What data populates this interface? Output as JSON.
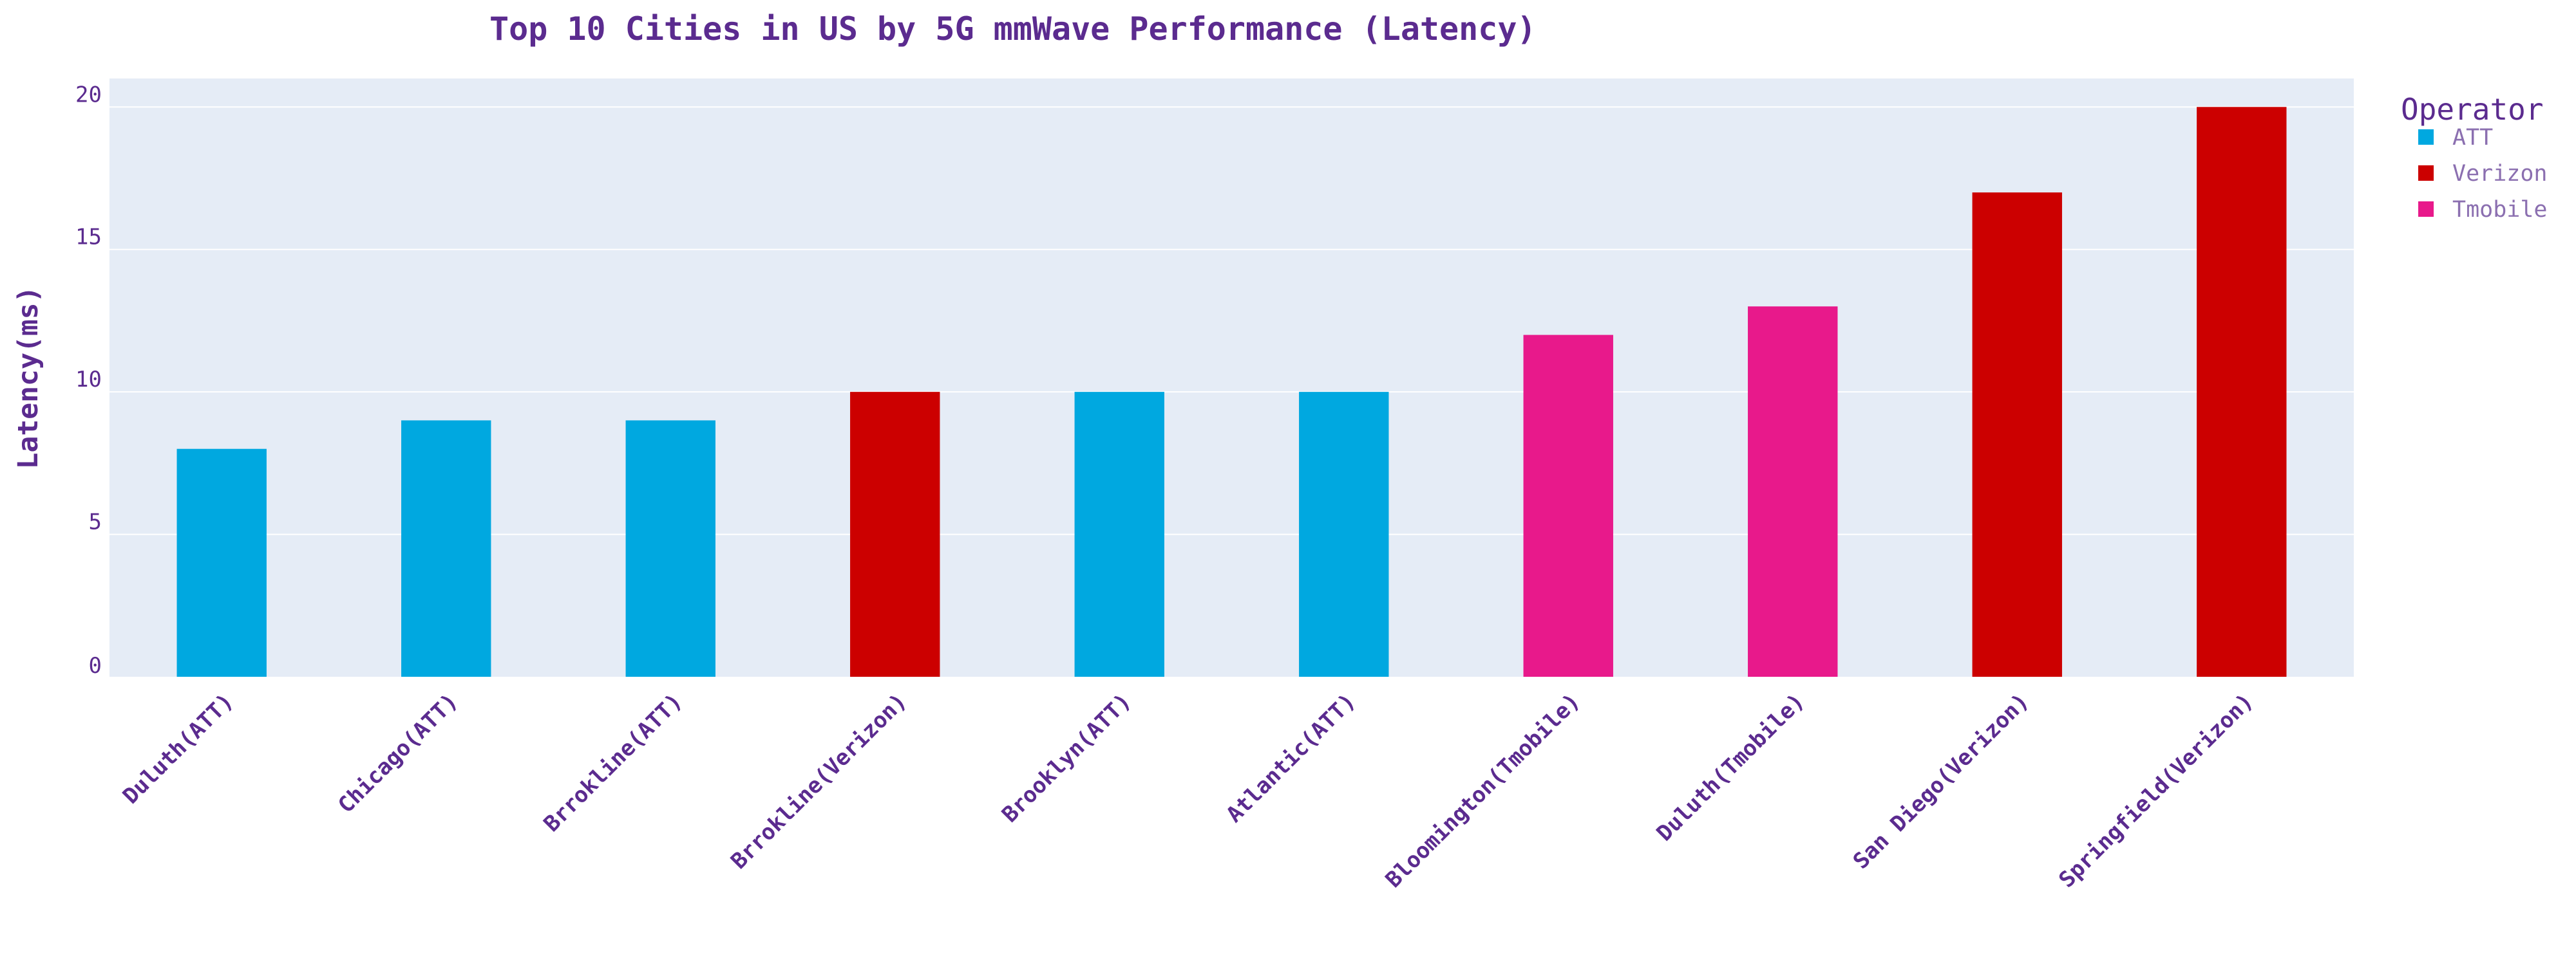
{
  "chart_data": {
    "type": "bar",
    "title": "Top 10 Cities in US by 5G mmWave Performance (Latency)",
    "xlabel": "",
    "ylabel": "Latency(ms)",
    "ylim": [
      0,
      21
    ],
    "yticks": [
      0,
      5,
      10,
      15,
      20
    ],
    "grid": true,
    "legend_position": "top-right",
    "legend_title": "Operator",
    "categories": [
      "Duluth(ATT)",
      "Chicago(ATT)",
      "Brrokline(ATT)",
      "Brrokline(Verizon)",
      "Brooklyn(ATT)",
      "Atlantic(ATT)",
      "Bloomington(Tmobile)",
      "Duluth(Tmobile)",
      "San Diego(Verizon)",
      "Springfield(Verizon)"
    ],
    "values": [
      8,
      9,
      9,
      10,
      10,
      10,
      12,
      13,
      17,
      20
    ],
    "operators": [
      "ATT",
      "ATT",
      "ATT",
      "Verizon",
      "ATT",
      "ATT",
      "Tmobile",
      "Tmobile",
      "Verizon",
      "Verizon"
    ],
    "legend": [
      {
        "name": "ATT",
        "color": "#00a8e0"
      },
      {
        "name": "Verizon",
        "color": "#cc0000"
      },
      {
        "name": "Tmobile",
        "color": "#e8198b"
      }
    ]
  },
  "colors": {
    "text": "#5b2b8f",
    "legend_text": "#8b6fb0",
    "plot_bg": "#e5ecf6",
    "grid": "#ffffff"
  }
}
